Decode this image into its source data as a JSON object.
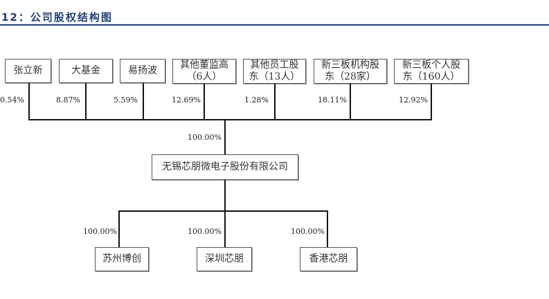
{
  "header": {
    "title": "12：公司股权结构图"
  },
  "shareholders": [
    {
      "name": "张立新",
      "percent": "0.54%"
    },
    {
      "name": "大基金",
      "percent": "8.87%"
    },
    {
      "name": "易扬波",
      "percent": "5.59%"
    },
    {
      "name": "其他董监高（6人）",
      "percent": "12.69%"
    },
    {
      "name": "其他员工股东（13人）",
      "percent": "1.28%"
    },
    {
      "name": "新三板机构股东（28家）",
      "percent": "18.11%"
    },
    {
      "name": "新三板个人股东（160人）",
      "percent": "12.92%"
    }
  ],
  "company": {
    "name": "无锡芯朋微电子股份有限公司",
    "percent": "100.00%"
  },
  "subsidiaries": [
    {
      "name": "苏州博创",
      "percent": "100.00%"
    },
    {
      "name": "深圳芯朋",
      "percent": "100.00%"
    },
    {
      "name": "香港芯朋",
      "percent": "100.00%"
    }
  ]
}
